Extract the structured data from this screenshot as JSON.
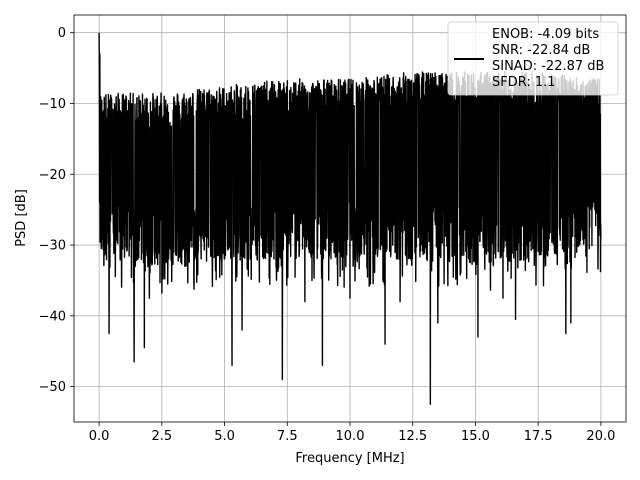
{
  "chart_data": {
    "type": "line",
    "title": "",
    "xlabel": "Frequency [MHz]",
    "ylabel": "PSD [dB]",
    "xlim": [
      -1.0,
      21.0
    ],
    "ylim": [
      -55.0,
      2.5
    ],
    "x_ticks": [
      0.0,
      2.5,
      5.0,
      7.5,
      10.0,
      12.5,
      15.0,
      17.5,
      20.0
    ],
    "x_tick_labels": [
      "0.0",
      "2.5",
      "5.0",
      "7.5",
      "10.0",
      "12.5",
      "15.0",
      "17.5",
      "20.0"
    ],
    "y_ticks": [
      0,
      -10,
      -20,
      -30,
      -40,
      -50
    ],
    "y_tick_labels": [
      "0",
      "−10",
      "−20",
      "−30",
      "−40",
      "−50"
    ],
    "grid": true,
    "legend_position": "top-right",
    "legend_lines": [
      "ENOB: -4.09 bits",
      "SNR: -22.84 dB",
      "SINAD: -22.87 dB",
      "SFDR: 1.1"
    ],
    "series": [
      {
        "color": "#000000",
        "x_range": [
          0.0,
          20.0
        ],
        "dc_peak": 0.0,
        "noise_floor_envelope": [
          {
            "x": 0.0,
            "upper": -12,
            "lower": -28
          },
          {
            "x": 2.5,
            "upper": -12,
            "lower": -29
          },
          {
            "x": 5.0,
            "upper": -11,
            "lower": -28
          },
          {
            "x": 7.5,
            "upper": -10,
            "lower": -28
          },
          {
            "x": 10.0,
            "upper": -10,
            "lower": -28
          },
          {
            "x": 12.5,
            "upper": -9,
            "lower": -28
          },
          {
            "x": 15.0,
            "upper": -9,
            "lower": -29
          },
          {
            "x": 17.5,
            "upper": -9,
            "lower": -28
          },
          {
            "x": 20.0,
            "upper": -10,
            "lower": -26
          }
        ],
        "notable_dips": [
          {
            "x": 0.4,
            "y": -42.5
          },
          {
            "x": 1.4,
            "y": -46.5
          },
          {
            "x": 1.8,
            "y": -44.5
          },
          {
            "x": 2.0,
            "y": -37.5
          },
          {
            "x": 5.3,
            "y": -47
          },
          {
            "x": 5.7,
            "y": -42
          },
          {
            "x": 7.3,
            "y": -49
          },
          {
            "x": 8.2,
            "y": -38
          },
          {
            "x": 8.9,
            "y": -47
          },
          {
            "x": 10.0,
            "y": -37.5
          },
          {
            "x": 11.4,
            "y": -44
          },
          {
            "x": 12.0,
            "y": -38
          },
          {
            "x": 13.2,
            "y": -52.5
          },
          {
            "x": 13.5,
            "y": -41
          },
          {
            "x": 15.1,
            "y": -43
          },
          {
            "x": 16.1,
            "y": -37.5
          },
          {
            "x": 16.6,
            "y": -40.5
          },
          {
            "x": 18.6,
            "y": -42.5
          },
          {
            "x": 18.8,
            "y": -41
          }
        ]
      }
    ]
  }
}
